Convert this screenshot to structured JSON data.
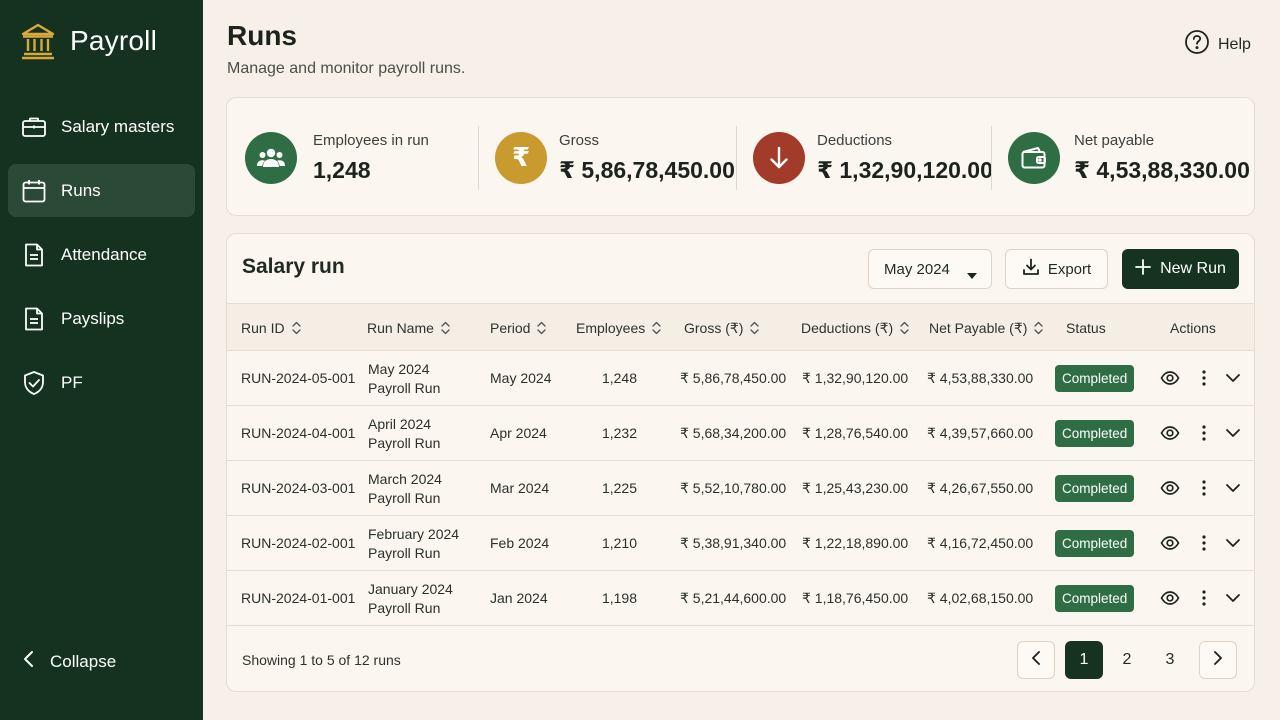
{
  "app": {
    "title": "Payroll"
  },
  "sidebar": {
    "items": [
      {
        "label": "Salary masters",
        "icon": "briefcase-icon"
      },
      {
        "label": "Runs",
        "icon": "calendar-icon",
        "active": true
      },
      {
        "label": "Attendance",
        "icon": "document-icon"
      },
      {
        "label": "Payslips",
        "icon": "document-icon"
      },
      {
        "label": "PF",
        "icon": "shield-check-icon"
      }
    ],
    "collapse_label": "Collapse"
  },
  "header": {
    "title": "Runs",
    "subtitle": "Manage and monitor payroll runs.",
    "help_label": "Help"
  },
  "stats": [
    {
      "label": "Employees in run",
      "value": "1,248",
      "icon": "users-icon",
      "color": "#2f6e45"
    },
    {
      "label": "Gross",
      "value": "₹ 5,86,78,450.00",
      "icon": "rupee-icon",
      "color": "#c99a2e"
    },
    {
      "label": "Deductions",
      "value": "₹ 1,32,90,120.00",
      "icon": "arrow-down-icon",
      "color": "#a33b2a"
    },
    {
      "label": "Net payable",
      "value": "₹ 4,53,88,330.00",
      "icon": "wallet-icon",
      "color": "#2f6e45"
    }
  ],
  "table": {
    "title": "Salary run",
    "period_select": "May 2024",
    "export_label": "Export",
    "new_run_label": "New Run",
    "columns": [
      "Run ID",
      "Run Name",
      "Period",
      "Employees",
      "Gross (₹)",
      "Deductions (₹)",
      "Net Payable (₹)",
      "Status",
      "Actions"
    ],
    "rows": [
      {
        "id": "RUN-2024-05-001",
        "name1": "May 2024",
        "name2": "Payroll Run",
        "period": "May 2024",
        "employees": "1,248",
        "gross": "₹ 5,86,78,450.00",
        "deductions": "₹ 1,32,90,120.00",
        "net": "₹ 4,53,88,330.00",
        "status": "Completed"
      },
      {
        "id": "RUN-2024-04-001",
        "name1": "April 2024",
        "name2": "Payroll Run",
        "period": "Apr 2024",
        "employees": "1,232",
        "gross": "₹ 5,68,34,200.00",
        "deductions": "₹ 1,28,76,540.00",
        "net": "₹ 4,39,57,660.00",
        "status": "Completed"
      },
      {
        "id": "RUN-2024-03-001",
        "name1": "March 2024",
        "name2": "Payroll Run",
        "period": "Mar 2024",
        "employees": "1,225",
        "gross": "₹ 5,52,10,780.00",
        "deductions": "₹ 1,25,43,230.00",
        "net": "₹ 4,26,67,550.00",
        "status": "Completed"
      },
      {
        "id": "RUN-2024-02-001",
        "name1": "February 2024",
        "name2": "Payroll Run",
        "period": "Feb 2024",
        "employees": "1,210",
        "gross": "₹ 5,38,91,340.00",
        "deductions": "₹ 1,22,18,890.00",
        "net": "₹ 4,16,72,450.00",
        "status": "Completed"
      },
      {
        "id": "RUN-2024-01-001",
        "name1": "January 2024",
        "name2": "Payroll Run",
        "period": "Jan 2024",
        "employees": "1,198",
        "gross": "₹ 5,21,44,600.00",
        "deductions": "₹ 1,18,76,450.00",
        "net": "₹ 4,02,68,150.00",
        "status": "Completed"
      }
    ],
    "footer_text": "Showing 1 to 5 of 12 runs",
    "pages": [
      "1",
      "2",
      "3"
    ]
  },
  "colors": {
    "sidebar": "#14321f",
    "accent": "#15331f",
    "badge": "#2f6e45",
    "background": "#f6f0e8"
  }
}
